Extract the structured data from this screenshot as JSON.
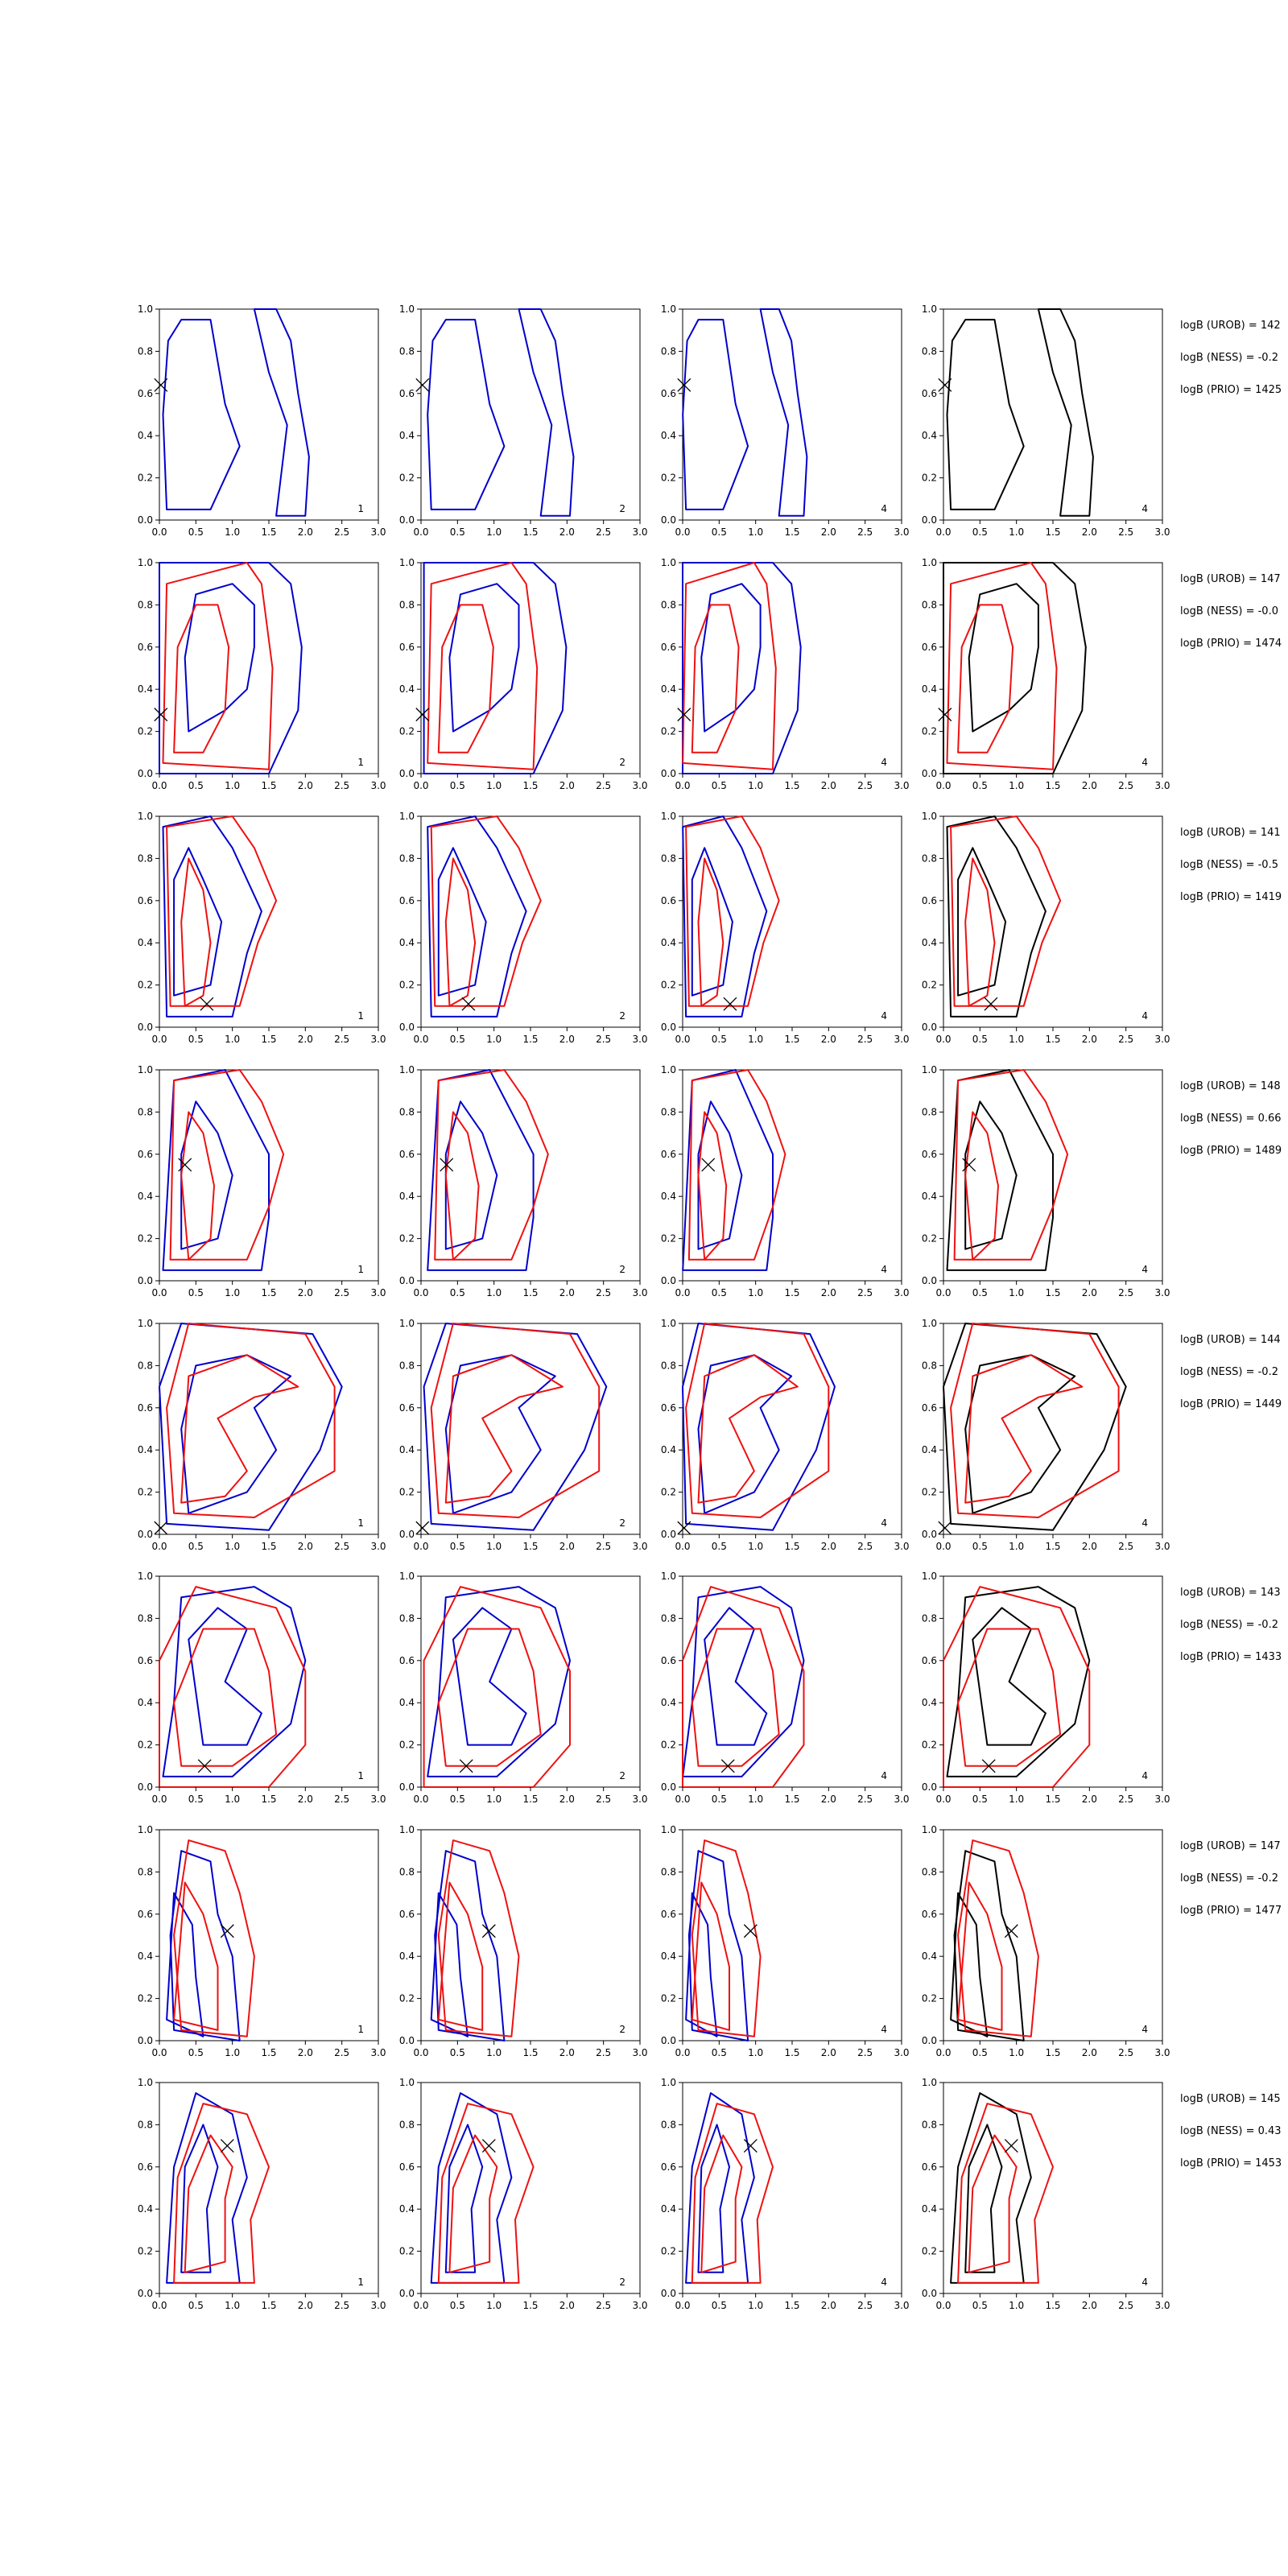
{
  "chart_data": {
    "type": "contour",
    "layout": {
      "rows": 8,
      "columns": 4
    },
    "xlim": [
      0.0,
      3.0
    ],
    "ylim": [
      0.0,
      1.0
    ],
    "xticks": [
      "0.0",
      "0.5",
      "1.0",
      "1.5",
      "2.0",
      "2.5",
      "3.0"
    ],
    "yticks": [
      "0.0",
      "0.2",
      "0.4",
      "0.6",
      "0.8",
      "1.0"
    ],
    "panel_labels": [
      "1",
      "2",
      "4",
      "4"
    ],
    "colors": {
      "blue": "#0000cc",
      "red": "#ee1111",
      "black": "#000000"
    },
    "markers": [
      {
        "x": 0.02,
        "y": 0.64
      },
      {
        "x": 0.02,
        "y": 0.28
      },
      {
        "x": 0.65,
        "y": 0.11
      },
      {
        "x": 0.35,
        "y": 0.55
      },
      {
        "x": 0.02,
        "y": 0.03
      },
      {
        "x": 0.62,
        "y": 0.1
      },
      {
        "x": 0.93,
        "y": 0.52
      },
      {
        "x": 0.93,
        "y": 0.7
      }
    ],
    "logb_text": [
      [
        "logB (UROB) = 142",
        "logB (NESS) = -0.2",
        "logB (PRIO) = 1425"
      ],
      [
        "logB (UROB) = 147",
        "logB (NESS) = -0.0",
        "logB (PRIO) = 1474"
      ],
      [
        "logB (UROB) = 141",
        "logB (NESS) = -0.5",
        "logB (PRIO) = 1419"
      ],
      [
        "logB (UROB) = 148",
        "logB (NESS) = 0.66",
        "logB (PRIO) = 1489"
      ],
      [
        "logB (UROB) = 144",
        "logB (NESS) = -0.2",
        "logB (PRIO) = 1449"
      ],
      [
        "logB (UROB) = 143",
        "logB (NESS) = -0.2",
        "logB (PRIO) = 1433"
      ],
      [
        "logB (UROB) = 147",
        "logB (NESS) = -0.2",
        "logB (PRIO) = 1477"
      ],
      [
        "logB (UROB) = 145",
        "logB (NESS) = 0.43",
        "logB (PRIO) = 1453"
      ]
    ],
    "contours": [
      {
        "blue": [
          [
            [
              0.1,
              0.05
            ],
            [
              0.7,
              0.05
            ],
            [
              0.9,
              0.2
            ],
            [
              1.1,
              0.35
            ],
            [
              0.9,
              0.55
            ],
            [
              0.8,
              0.75
            ],
            [
              0.7,
              0.95
            ],
            [
              0.3,
              0.95
            ],
            [
              0.12,
              0.85
            ],
            [
              0.05,
              0.5
            ]
          ],
          [
            [
              1.6,
              0.02
            ],
            [
              2.0,
              0.02
            ],
            [
              2.05,
              0.3
            ],
            [
              1.9,
              0.6
            ],
            [
              1.8,
              0.85
            ],
            [
              1.6,
              1.0
            ],
            [
              1.3,
              1.0
            ],
            [
              1.5,
              0.7
            ],
            [
              1.75,
              0.45
            ]
          ]
        ],
        "red": []
      },
      {
        "blue": [
          [
            [
              0.0,
              0.0
            ],
            [
              1.5,
              0.0
            ],
            [
              1.9,
              0.3
            ],
            [
              1.95,
              0.6
            ],
            [
              1.8,
              0.9
            ],
            [
              1.5,
              1.0
            ],
            [
              0.0,
              1.0
            ]
          ],
          [
            [
              0.4,
              0.2
            ],
            [
              0.9,
              0.3
            ],
            [
              1.2,
              0.4
            ],
            [
              1.3,
              0.6
            ],
            [
              1.3,
              0.8
            ],
            [
              1.0,
              0.9
            ],
            [
              0.5,
              0.85
            ],
            [
              0.35,
              0.55
            ]
          ]
        ],
        "red": [
          [
            [
              0.05,
              0.05
            ],
            [
              1.5,
              0.02
            ],
            [
              1.55,
              0.5
            ],
            [
              1.4,
              0.9
            ],
            [
              1.2,
              1.0
            ],
            [
              0.1,
              0.9
            ]
          ],
          [
            [
              0.2,
              0.1
            ],
            [
              0.6,
              0.1
            ],
            [
              0.9,
              0.3
            ],
            [
              0.95,
              0.6
            ],
            [
              0.8,
              0.8
            ],
            [
              0.5,
              0.8
            ],
            [
              0.25,
              0.6
            ]
          ]
        ]
      },
      {
        "blue": [
          [
            [
              0.1,
              0.05
            ],
            [
              1.0,
              0.05
            ],
            [
              1.2,
              0.35
            ],
            [
              1.4,
              0.55
            ],
            [
              1.0,
              0.85
            ],
            [
              0.7,
              1.0
            ],
            [
              0.05,
              0.95
            ]
          ],
          [
            [
              0.2,
              0.15
            ],
            [
              0.7,
              0.2
            ],
            [
              0.85,
              0.5
            ],
            [
              0.6,
              0.7
            ],
            [
              0.4,
              0.85
            ],
            [
              0.2,
              0.7
            ]
          ]
        ],
        "red": [
          [
            [
              0.15,
              0.1
            ],
            [
              1.1,
              0.1
            ],
            [
              1.35,
              0.4
            ],
            [
              1.6,
              0.6
            ],
            [
              1.3,
              0.85
            ],
            [
              1.0,
              1.0
            ],
            [
              0.1,
              0.95
            ]
          ],
          [
            [
              0.35,
              0.1
            ],
            [
              0.6,
              0.15
            ],
            [
              0.7,
              0.4
            ],
            [
              0.6,
              0.65
            ],
            [
              0.4,
              0.8
            ],
            [
              0.3,
              0.5
            ]
          ]
        ]
      },
      {
        "black": [
          [
            [
              0.05,
              0.05
            ],
            [
              1.4,
              0.05
            ],
            [
              1.5,
              0.3
            ],
            [
              1.5,
              0.6
            ],
            [
              1.2,
              0.8
            ],
            [
              0.9,
              1.0
            ],
            [
              0.2,
              0.95
            ]
          ],
          [
            [
              0.3,
              0.15
            ],
            [
              0.8,
              0.2
            ],
            [
              1.0,
              0.5
            ],
            [
              0.8,
              0.7
            ],
            [
              0.5,
              0.85
            ],
            [
              0.3,
              0.6
            ]
          ]
        ],
        "red": [
          [
            [
              0.15,
              0.1
            ],
            [
              1.2,
              0.1
            ],
            [
              1.5,
              0.35
            ],
            [
              1.7,
              0.6
            ],
            [
              1.4,
              0.85
            ],
            [
              1.1,
              1.0
            ],
            [
              0.2,
              0.95
            ]
          ],
          [
            [
              0.4,
              0.1
            ],
            [
              0.7,
              0.2
            ],
            [
              0.75,
              0.45
            ],
            [
              0.6,
              0.7
            ],
            [
              0.4,
              0.8
            ],
            [
              0.3,
              0.5
            ]
          ]
        ]
      },
      {
        "blue": [
          [
            [
              0.1,
              0.05
            ],
            [
              1.5,
              0.02
            ],
            [
              2.2,
              0.4
            ],
            [
              2.5,
              0.7
            ],
            [
              2.1,
              0.95
            ],
            [
              0.3,
              1.0
            ],
            [
              0.0,
              0.7
            ]
          ],
          [
            [
              0.4,
              0.1
            ],
            [
              1.2,
              0.2
            ],
            [
              1.6,
              0.4
            ],
            [
              1.3,
              0.6
            ],
            [
              1.8,
              0.75
            ],
            [
              1.2,
              0.85
            ],
            [
              0.5,
              0.8
            ],
            [
              0.3,
              0.5
            ]
          ]
        ],
        "red": [
          [
            [
              0.2,
              0.1
            ],
            [
              1.3,
              0.08
            ],
            [
              2.4,
              0.3
            ],
            [
              2.4,
              0.7
            ],
            [
              2.0,
              0.95
            ],
            [
              0.4,
              1.0
            ],
            [
              0.1,
              0.6
            ]
          ],
          [
            [
              0.3,
              0.15
            ],
            [
              0.9,
              0.18
            ],
            [
              1.2,
              0.3
            ],
            [
              0.8,
              0.55
            ],
            [
              1.3,
              0.65
            ],
            [
              1.9,
              0.7
            ],
            [
              1.2,
              0.85
            ],
            [
              0.4,
              0.75
            ]
          ]
        ]
      },
      {
        "blue": [
          [
            [
              0.05,
              0.05
            ],
            [
              1.0,
              0.05
            ],
            [
              1.8,
              0.3
            ],
            [
              2.0,
              0.6
            ],
            [
              1.8,
              0.85
            ],
            [
              1.3,
              0.95
            ],
            [
              0.3,
              0.9
            ],
            [
              0.2,
              0.4
            ]
          ],
          [
            [
              0.6,
              0.2
            ],
            [
              1.2,
              0.2
            ],
            [
              1.4,
              0.35
            ],
            [
              0.9,
              0.5
            ],
            [
              1.2,
              0.75
            ],
            [
              0.8,
              0.85
            ],
            [
              0.4,
              0.7
            ]
          ]
        ],
        "red": [
          [
            [
              0.0,
              0.0
            ],
            [
              1.5,
              0.0
            ],
            [
              2.0,
              0.2
            ],
            [
              2.0,
              0.55
            ],
            [
              1.6,
              0.85
            ],
            [
              0.5,
              0.95
            ],
            [
              0.0,
              0.6
            ]
          ],
          [
            [
              0.3,
              0.1
            ],
            [
              1.0,
              0.1
            ],
            [
              1.6,
              0.25
            ],
            [
              1.5,
              0.55
            ],
            [
              1.3,
              0.75
            ],
            [
              0.6,
              0.75
            ],
            [
              0.2,
              0.4
            ]
          ]
        ]
      },
      {
        "blue": [
          [
            [
              0.2,
              0.05
            ],
            [
              1.1,
              0.0
            ],
            [
              1.0,
              0.4
            ],
            [
              0.8,
              0.6
            ],
            [
              0.7,
              0.85
            ],
            [
              0.3,
              0.9
            ],
            [
              0.15,
              0.5
            ]
          ],
          [
            [
              0.1,
              0.1
            ],
            [
              0.6,
              0.02
            ],
            [
              0.5,
              0.3
            ],
            [
              0.45,
              0.55
            ],
            [
              0.2,
              0.7
            ]
          ]
        ],
        "red": [
          [
            [
              0.3,
              0.05
            ],
            [
              1.2,
              0.02
            ],
            [
              1.3,
              0.4
            ],
            [
              1.1,
              0.7
            ],
            [
              0.9,
              0.9
            ],
            [
              0.4,
              0.95
            ],
            [
              0.2,
              0.5
            ]
          ],
          [
            [
              0.2,
              0.1
            ],
            [
              0.8,
              0.05
            ],
            [
              0.8,
              0.35
            ],
            [
              0.6,
              0.6
            ],
            [
              0.35,
              0.75
            ]
          ]
        ]
      },
      {
        "black": [
          [
            [
              0.1,
              0.05
            ],
            [
              1.1,
              0.05
            ],
            [
              1.0,
              0.35
            ],
            [
              1.2,
              0.55
            ],
            [
              1.0,
              0.85
            ],
            [
              0.5,
              0.95
            ],
            [
              0.2,
              0.6
            ]
          ],
          [
            [
              0.3,
              0.1
            ],
            [
              0.7,
              0.1
            ],
            [
              0.65,
              0.4
            ],
            [
              0.8,
              0.6
            ],
            [
              0.6,
              0.8
            ],
            [
              0.35,
              0.6
            ]
          ]
        ],
        "red": [
          [
            [
              0.2,
              0.05
            ],
            [
              1.3,
              0.05
            ],
            [
              1.25,
              0.35
            ],
            [
              1.5,
              0.6
            ],
            [
              1.2,
              0.85
            ],
            [
              0.6,
              0.9
            ],
            [
              0.25,
              0.55
            ]
          ],
          [
            [
              0.35,
              0.1
            ],
            [
              0.9,
              0.15
            ],
            [
              0.9,
              0.45
            ],
            [
              1.0,
              0.6
            ],
            [
              0.7,
              0.75
            ],
            [
              0.4,
              0.5
            ]
          ]
        ]
      }
    ]
  }
}
